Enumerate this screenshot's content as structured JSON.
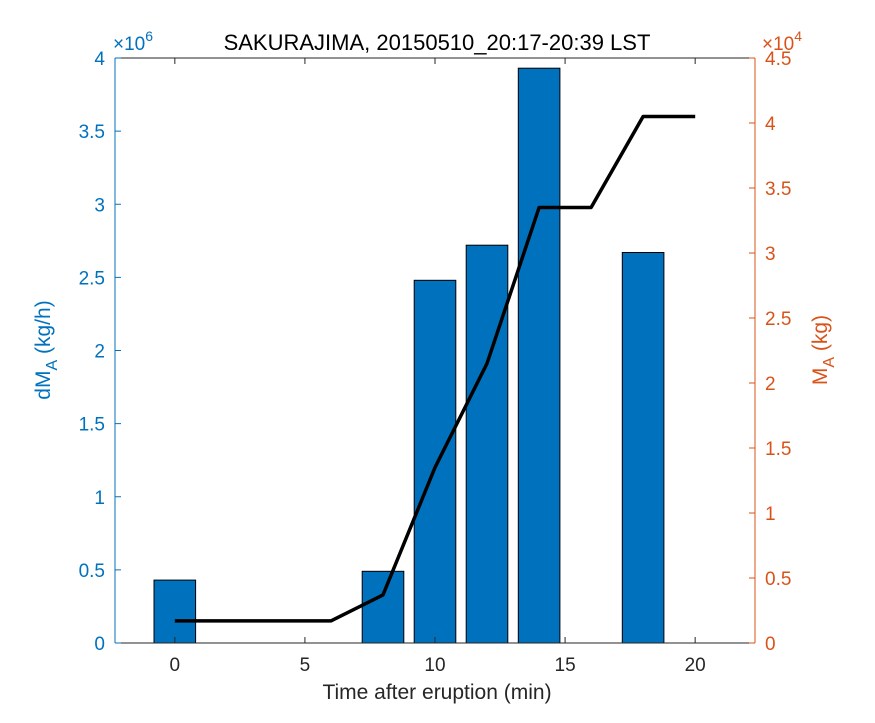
{
  "chart_data": {
    "type": "bar",
    "title": "SAKURAJIMA, 20150510_20:17-20:39 LST",
    "xlabel": "Time after eruption (min)",
    "xlim": [
      -2.3,
      22.3
    ],
    "xticks": [
      0,
      5,
      10,
      15,
      20
    ],
    "bar_width_min": 1.6,
    "colors": {
      "left_axis": "#0072bd",
      "right_axis": "#d95319",
      "bars": "#0072bd",
      "line": "#000000"
    },
    "y_left": {
      "label": "dM",
      "label_sub": "A",
      "label_tail": " (kg/h)",
      "multiplier_base": "×10",
      "multiplier_exp": "6",
      "lim": [
        0,
        4
      ],
      "ticks": [
        0,
        0.5,
        1,
        1.5,
        2,
        2.5,
        3,
        3.5,
        4
      ],
      "tick_labels": [
        "0",
        "0.5",
        "1",
        "1.5",
        "2",
        "2.5",
        "3",
        "3.5",
        "4"
      ]
    },
    "y_right": {
      "label": "M",
      "label_sub": "A",
      "label_tail": " (kg)",
      "multiplier_base": "×10",
      "multiplier_exp": "4",
      "lim": [
        0,
        4.5
      ],
      "ticks": [
        0,
        0.5,
        1,
        1.5,
        2,
        2.5,
        3,
        3.5,
        4,
        4.5
      ],
      "tick_labels": [
        "0",
        "0.5",
        "1",
        "1.5",
        "2",
        "2.5",
        "3",
        "3.5",
        "4",
        "4.5"
      ]
    },
    "series": [
      {
        "kind": "bar",
        "axis": "left",
        "x": [
          0,
          8,
          10,
          12,
          14,
          18
        ],
        "values": [
          0.43,
          0.49,
          2.48,
          2.72,
          3.93,
          2.67
        ]
      },
      {
        "kind": "line",
        "axis": "right",
        "x": [
          0,
          2,
          4,
          6,
          8,
          10,
          12,
          14,
          16,
          18,
          20
        ],
        "values": [
          0.17,
          0.17,
          0.17,
          0.17,
          0.37,
          1.35,
          2.15,
          3.35,
          3.35,
          4.05,
          4.05
        ]
      }
    ]
  }
}
